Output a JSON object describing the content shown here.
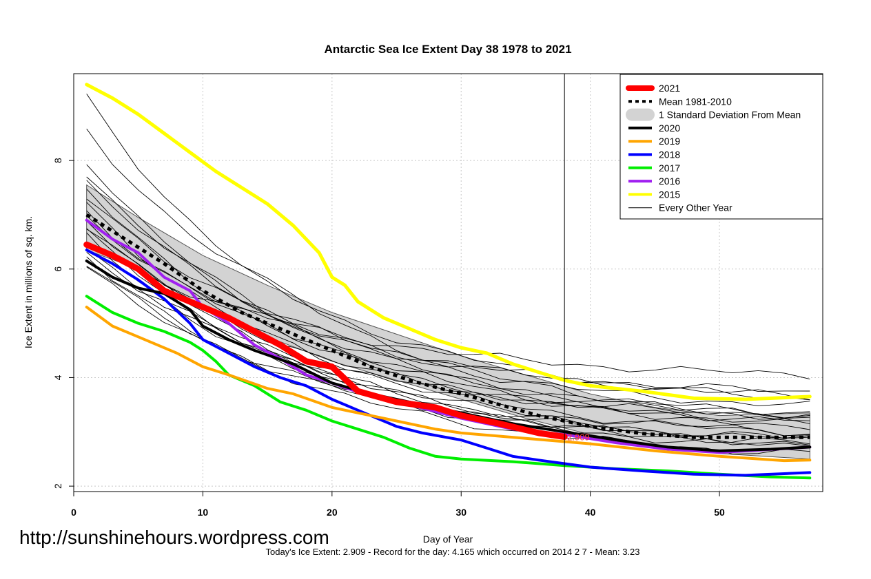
{
  "watermark": "http://sunshinehours.wordpress.com",
  "footer": "Today's Ice Extent: 2.909  - Record for the day: 4.165 which occurred on 2014 2 7  - Mean: 3.23",
  "chart_data": {
    "type": "line",
    "title": "Antarctic Sea Ice Extent Day 38 1978 to 2021",
    "xlabel": "Day of Year",
    "ylabel": "Ice Extent in millions of sq. km.",
    "xlim": [
      0,
      58
    ],
    "ylim": [
      1.9,
      9.6
    ],
    "xticks": [
      0,
      10,
      20,
      30,
      40,
      50
    ],
    "yticks": [
      2,
      4,
      6,
      8
    ],
    "grid": true,
    "legend_position": "top-right",
    "vline_day": 38,
    "current_marker": {
      "day": 38,
      "value": 2.909,
      "label": "2.909"
    },
    "legend": [
      {
        "label": "2021",
        "color": "#ff0000",
        "style": "thick"
      },
      {
        "label": "Mean 1981-2010",
        "color": "#000000",
        "style": "dotted"
      },
      {
        "label": "1 Standard Deviation From Mean",
        "color": "#d3d3d3",
        "style": "band"
      },
      {
        "label": "2020",
        "color": "#000000",
        "style": "solid"
      },
      {
        "label": "2019",
        "color": "#ffa500",
        "style": "solid"
      },
      {
        "label": "2018",
        "color": "#0000ff",
        "style": "solid"
      },
      {
        "label": "2017",
        "color": "#00ee00",
        "style": "solid"
      },
      {
        "label": "2016",
        "color": "#a020f0",
        "style": "solid"
      },
      {
        "label": "2015",
        "color": "#ffff00",
        "style": "solid"
      },
      {
        "label": "Every Other Year",
        "color": "#000000",
        "style": "thin"
      }
    ],
    "std_band": {
      "x": [
        1,
        5,
        10,
        15,
        20,
        25,
        30,
        35,
        40,
        45,
        50,
        57
      ],
      "upper": [
        7.55,
        6.95,
        6.25,
        5.7,
        5.2,
        4.8,
        4.4,
        4.05,
        3.7,
        3.45,
        3.3,
        3.35
      ],
      "lower": [
        6.35,
        6.0,
        5.3,
        4.75,
        4.3,
        3.95,
        3.6,
        3.25,
        2.95,
        2.75,
        2.6,
        2.5
      ]
    },
    "mean": {
      "x": [
        1,
        3,
        5,
        7,
        10,
        13,
        16,
        20,
        23,
        26,
        30,
        33,
        36,
        40,
        44,
        48,
        52,
        57
      ],
      "values": [
        7.0,
        6.7,
        6.4,
        6.1,
        5.6,
        5.2,
        4.9,
        4.5,
        4.2,
        3.95,
        3.7,
        3.5,
        3.3,
        3.1,
        2.97,
        2.9,
        2.9,
        2.9
      ]
    },
    "series": [
      {
        "name": "2021",
        "color": "#ff0000",
        "width": 9,
        "x": [
          1,
          3,
          5,
          7,
          10,
          12,
          14,
          16,
          18,
          20,
          22,
          25,
          28,
          30,
          33,
          36,
          38
        ],
        "values": [
          6.45,
          6.25,
          6.0,
          5.6,
          5.3,
          5.1,
          4.85,
          4.6,
          4.3,
          4.2,
          3.75,
          3.55,
          3.45,
          3.3,
          3.15,
          2.98,
          2.909
        ]
      },
      {
        "name": "2020",
        "color": "#000000",
        "width": 4,
        "x": [
          1,
          3,
          5,
          7,
          9,
          10,
          12,
          14,
          17,
          20,
          23,
          26,
          30,
          34,
          38,
          42,
          46,
          50,
          54,
          57
        ],
        "values": [
          6.15,
          5.85,
          5.65,
          5.55,
          5.25,
          4.95,
          4.7,
          4.5,
          4.25,
          3.9,
          3.7,
          3.55,
          3.35,
          3.15,
          3.0,
          2.85,
          2.72,
          2.65,
          2.68,
          2.72
        ]
      },
      {
        "name": "2019",
        "color": "#ffa500",
        "width": 4,
        "x": [
          1,
          3,
          5,
          8,
          10,
          12,
          15,
          17,
          20,
          22,
          25,
          28,
          30,
          35,
          40,
          45,
          50,
          55,
          57
        ],
        "values": [
          5.3,
          4.95,
          4.75,
          4.45,
          4.2,
          4.05,
          3.8,
          3.7,
          3.45,
          3.35,
          3.2,
          3.05,
          2.98,
          2.88,
          2.78,
          2.65,
          2.55,
          2.47,
          2.48
        ]
      },
      {
        "name": "2018",
        "color": "#0000ff",
        "width": 4,
        "x": [
          1,
          3,
          5,
          7,
          9,
          10,
          12,
          14,
          16,
          18,
          20,
          22,
          25,
          27,
          30,
          32,
          34,
          36,
          40,
          44,
          48,
          52,
          57
        ],
        "values": [
          6.35,
          6.1,
          5.8,
          5.45,
          5.0,
          4.7,
          4.45,
          4.2,
          4.0,
          3.85,
          3.6,
          3.4,
          3.1,
          2.98,
          2.85,
          2.7,
          2.55,
          2.48,
          2.35,
          2.28,
          2.22,
          2.2,
          2.25
        ]
      },
      {
        "name": "2017",
        "color": "#00ee00",
        "width": 4,
        "x": [
          1,
          3,
          5,
          7,
          9,
          10,
          11,
          12,
          14,
          16,
          18,
          20,
          22,
          24,
          26,
          28,
          30,
          34,
          38,
          42,
          46,
          50,
          54,
          57
        ],
        "values": [
          5.5,
          5.2,
          5.0,
          4.85,
          4.65,
          4.5,
          4.3,
          4.05,
          3.85,
          3.55,
          3.4,
          3.2,
          3.05,
          2.9,
          2.7,
          2.55,
          2.5,
          2.45,
          2.38,
          2.32,
          2.28,
          2.22,
          2.17,
          2.15
        ]
      },
      {
        "name": "2016",
        "color": "#a020f0",
        "width": 4,
        "x": [
          1,
          3,
          5,
          7,
          9,
          10,
          12,
          14,
          16,
          18,
          20,
          23,
          26,
          30,
          34,
          38,
          42,
          46,
          50,
          57
        ],
        "values": [
          6.9,
          6.55,
          6.3,
          5.85,
          5.6,
          5.3,
          5.0,
          4.6,
          4.35,
          4.05,
          3.9,
          3.65,
          3.5,
          3.25,
          3.05,
          2.95,
          2.8,
          2.68,
          2.62,
          2.72
        ]
      },
      {
        "name": "2015",
        "color": "#ffff00",
        "width": 5,
        "x": [
          1,
          3,
          5,
          7,
          9,
          11,
          13,
          15,
          17,
          19,
          20,
          21,
          22,
          24,
          26,
          28,
          30,
          32,
          34,
          36,
          38,
          40,
          44,
          48,
          52,
          57
        ],
        "values": [
          9.4,
          9.15,
          8.85,
          8.5,
          8.15,
          7.8,
          7.5,
          7.2,
          6.8,
          6.3,
          5.85,
          5.7,
          5.4,
          5.1,
          4.9,
          4.7,
          4.55,
          4.45,
          4.25,
          4.1,
          3.95,
          3.85,
          3.75,
          3.62,
          3.6,
          3.65
        ]
      }
    ],
    "other_years": [
      {
        "start": 9.15,
        "end": 3.0
      },
      {
        "start": 8.55,
        "end": 3.4
      },
      {
        "start": 8.0,
        "end": 2.9
      },
      {
        "start": 7.75,
        "end": 3.1
      },
      {
        "start": 7.6,
        "end": 3.3
      },
      {
        "start": 7.45,
        "end": 2.95
      },
      {
        "start": 7.3,
        "end": 3.5
      },
      {
        "start": 7.2,
        "end": 2.8
      },
      {
        "start": 7.05,
        "end": 3.2
      },
      {
        "start": 6.95,
        "end": 2.6
      },
      {
        "start": 6.8,
        "end": 3.05
      },
      {
        "start": 6.7,
        "end": 2.7
      },
      {
        "start": 6.6,
        "end": 2.55
      },
      {
        "start": 6.5,
        "end": 3.95
      },
      {
        "start": 6.4,
        "end": 2.85
      },
      {
        "start": 6.3,
        "end": 3.15
      },
      {
        "start": 6.25,
        "end": 2.45
      },
      {
        "start": 6.1,
        "end": 2.65
      },
      {
        "start": 6.0,
        "end": 2.75
      },
      {
        "start": 6.9,
        "end": 3.6
      }
    ]
  }
}
